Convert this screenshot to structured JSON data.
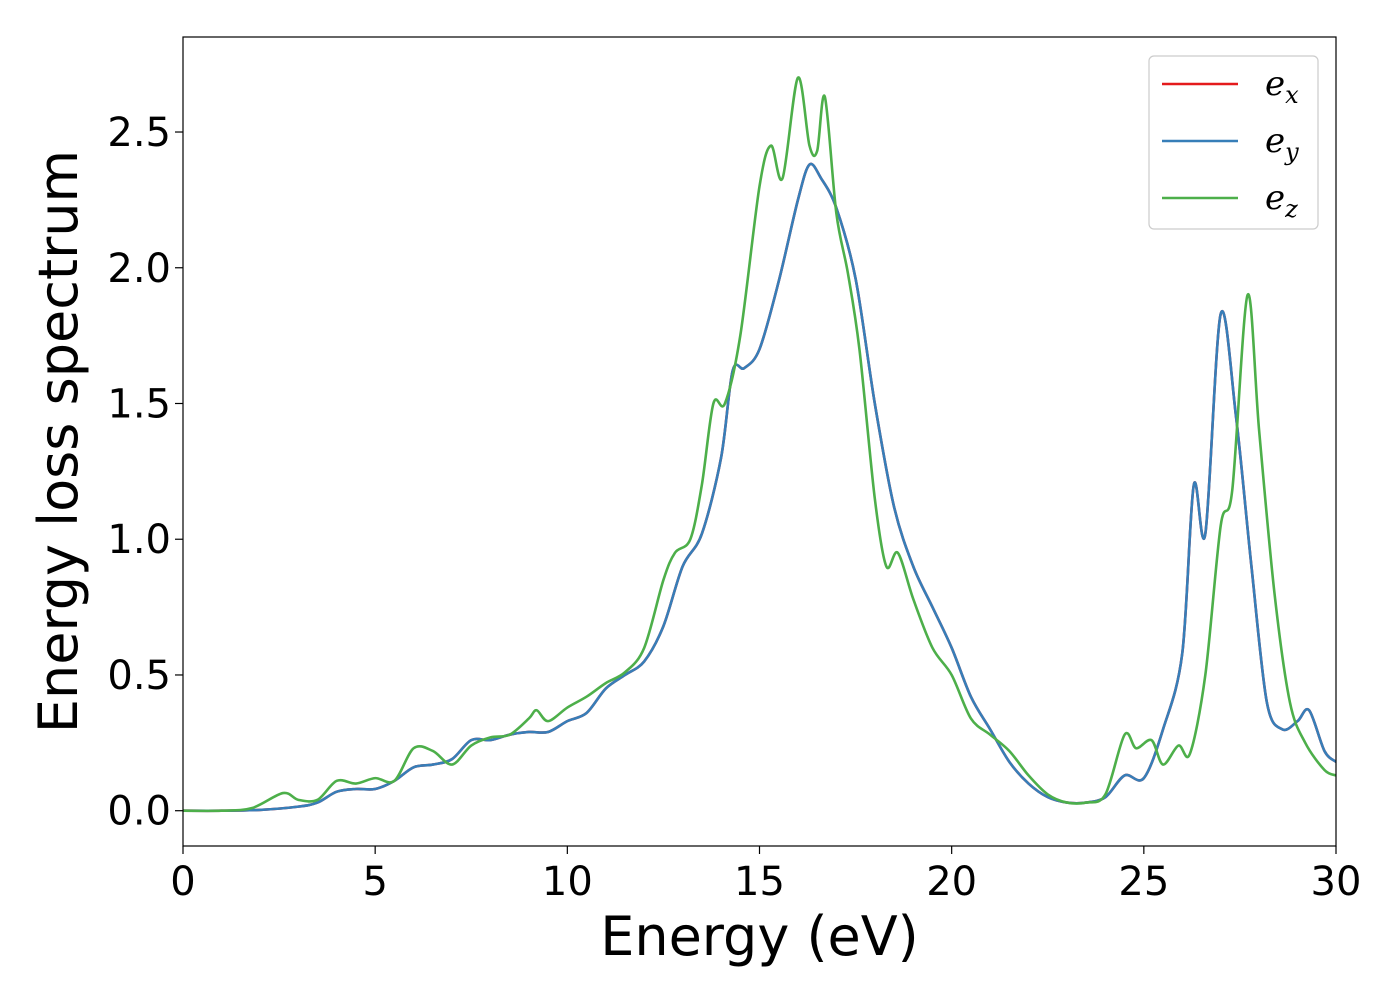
{
  "chart_data": {
    "type": "line",
    "title": "",
    "xlabel": "Energy (eV)",
    "ylabel": "Energy loss spectrum",
    "xlim": [
      0,
      30
    ],
    "ylim": [
      -0.13,
      2.85
    ],
    "xticks": [
      "0",
      "5",
      "10",
      "15",
      "20",
      "25",
      "30"
    ],
    "yticks": [
      "0.0",
      "0.5",
      "1.0",
      "1.5",
      "2.0",
      "2.5"
    ],
    "grid": false,
    "legend_position": "top-right",
    "series": [
      {
        "name": "e",
        "name_subscript": "x",
        "color": "#e41a1c",
        "x": [
          0,
          1,
          2,
          3,
          3.5,
          4,
          4.5,
          5,
          5.5,
          6,
          6.5,
          7,
          7.5,
          8,
          8.5,
          9,
          9.5,
          10,
          10.5,
          11,
          11.5,
          12,
          12.5,
          13,
          13.5,
          14,
          14.3,
          14.6,
          15,
          15.5,
          16,
          16.3,
          16.6,
          17,
          17.5,
          18,
          18.5,
          19,
          19.5,
          20,
          20.5,
          21,
          21.5,
          22,
          22.5,
          23,
          23.5,
          24,
          24.5,
          25,
          25.5,
          26,
          26.3,
          26.6,
          27,
          27.4,
          27.8,
          28.2,
          28.6,
          29,
          29.3,
          29.7,
          30
        ],
        "y": [
          0,
          0,
          0.003,
          0.015,
          0.03,
          0.07,
          0.08,
          0.08,
          0.11,
          0.16,
          0.17,
          0.19,
          0.26,
          0.26,
          0.28,
          0.29,
          0.29,
          0.33,
          0.36,
          0.45,
          0.5,
          0.55,
          0.68,
          0.9,
          1.02,
          1.3,
          1.62,
          1.63,
          1.7,
          1.95,
          2.25,
          2.38,
          2.33,
          2.22,
          1.96,
          1.5,
          1.12,
          0.9,
          0.75,
          0.6,
          0.42,
          0.3,
          0.18,
          0.1,
          0.05,
          0.03,
          0.03,
          0.05,
          0.13,
          0.12,
          0.3,
          0.58,
          1.2,
          1.02,
          1.83,
          1.45,
          0.9,
          0.4,
          0.3,
          0.33,
          0.37,
          0.22,
          0.18
        ]
      },
      {
        "name": "e",
        "name_subscript": "y",
        "color": "#377eb8",
        "x": [
          0,
          1,
          2,
          3,
          3.5,
          4,
          4.5,
          5,
          5.5,
          6,
          6.5,
          7,
          7.5,
          8,
          8.5,
          9,
          9.5,
          10,
          10.5,
          11,
          11.5,
          12,
          12.5,
          13,
          13.5,
          14,
          14.3,
          14.6,
          15,
          15.5,
          16,
          16.3,
          16.6,
          17,
          17.5,
          18,
          18.5,
          19,
          19.5,
          20,
          20.5,
          21,
          21.5,
          22,
          22.5,
          23,
          23.5,
          24,
          24.5,
          25,
          25.5,
          26,
          26.3,
          26.6,
          27,
          27.4,
          27.8,
          28.2,
          28.6,
          29,
          29.3,
          29.7,
          30
        ],
        "y": [
          0,
          0,
          0.003,
          0.015,
          0.03,
          0.07,
          0.08,
          0.08,
          0.11,
          0.16,
          0.17,
          0.19,
          0.26,
          0.26,
          0.28,
          0.29,
          0.29,
          0.33,
          0.36,
          0.45,
          0.5,
          0.55,
          0.68,
          0.9,
          1.02,
          1.3,
          1.62,
          1.63,
          1.7,
          1.95,
          2.25,
          2.38,
          2.33,
          2.22,
          1.96,
          1.5,
          1.12,
          0.9,
          0.75,
          0.6,
          0.42,
          0.3,
          0.18,
          0.1,
          0.05,
          0.03,
          0.03,
          0.05,
          0.13,
          0.12,
          0.3,
          0.58,
          1.2,
          1.02,
          1.83,
          1.45,
          0.9,
          0.4,
          0.3,
          0.33,
          0.37,
          0.22,
          0.18
        ]
      },
      {
        "name": "e",
        "name_subscript": "z",
        "color": "#4daf4a",
        "x": [
          0,
          1,
          1.8,
          2.6,
          3,
          3.5,
          4,
          4.5,
          5,
          5.5,
          6,
          6.5,
          7,
          7.5,
          8,
          8.5,
          9,
          9.2,
          9.5,
          10,
          10.5,
          11,
          11.5,
          12,
          12.5,
          12.8,
          13.2,
          13.5,
          13.8,
          14.1,
          14.5,
          15,
          15.3,
          15.6,
          16,
          16.3,
          16.5,
          16.7,
          17,
          17.3,
          17.6,
          18,
          18.3,
          18.6,
          19,
          19.5,
          20,
          20.5,
          21,
          21.5,
          22,
          22.5,
          23,
          23.5,
          24,
          24.5,
          24.8,
          25.2,
          25.5,
          25.9,
          26.2,
          26.6,
          27,
          27.3,
          27.7,
          28,
          28.4,
          28.8,
          29.2,
          29.7,
          30
        ],
        "y": [
          0,
          0,
          0.01,
          0.065,
          0.04,
          0.04,
          0.11,
          0.1,
          0.12,
          0.11,
          0.23,
          0.22,
          0.17,
          0.24,
          0.27,
          0.28,
          0.34,
          0.37,
          0.33,
          0.38,
          0.42,
          0.47,
          0.51,
          0.6,
          0.85,
          0.95,
          1.0,
          1.2,
          1.5,
          1.5,
          1.75,
          2.3,
          2.45,
          2.33,
          2.7,
          2.45,
          2.43,
          2.63,
          2.2,
          1.98,
          1.7,
          1.15,
          0.9,
          0.95,
          0.78,
          0.6,
          0.5,
          0.34,
          0.28,
          0.22,
          0.13,
          0.06,
          0.03,
          0.03,
          0.06,
          0.28,
          0.23,
          0.26,
          0.17,
          0.24,
          0.21,
          0.5,
          1.05,
          1.18,
          1.9,
          1.4,
          0.8,
          0.4,
          0.25,
          0.15,
          0.13
        ]
      }
    ]
  }
}
